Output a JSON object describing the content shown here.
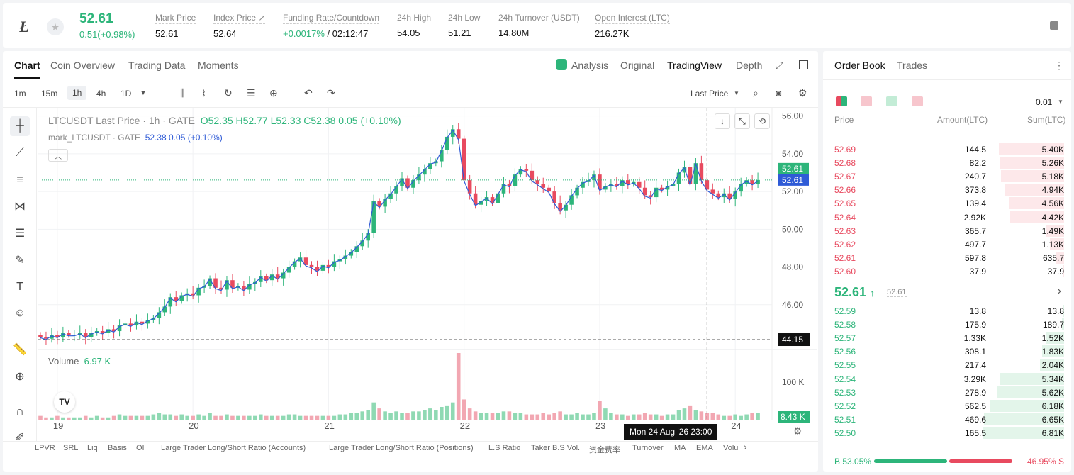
{
  "header": {
    "last_price": "52.61",
    "change": "0.51(+0.98%)",
    "stats": [
      {
        "label": "Mark Price",
        "value": "52.61"
      },
      {
        "label": "Index Price ↗",
        "value": "52.64"
      },
      {
        "label": "Funding Rate/Countdown",
        "value": "+0.0017%",
        "value2": "/ 02:12:47"
      },
      {
        "label": "24h High",
        "value": "54.05"
      },
      {
        "label": "24h Low",
        "value": "51.21"
      },
      {
        "label": "24h Turnover (USDT)",
        "value": "14.80M"
      },
      {
        "label": "Open Interest (LTC)",
        "value": "216.27K"
      }
    ]
  },
  "chart_tabs": [
    "Chart",
    "Coin Overview",
    "Trading Data",
    "Moments"
  ],
  "view_tabs": [
    "Analysis",
    "Original",
    "TradingView",
    "Depth"
  ],
  "timeframes": [
    "1m",
    "15m",
    "1h",
    "4h",
    "1D"
  ],
  "price_type": "Last Price",
  "legend": {
    "symbol": "LTCUSDT Last Price · 1h · GATE",
    "ohlc": "O52.35 H52.77 L52.33 C52.38 0.05 (+0.10%)",
    "mark": "mark_LTCUSDT · GATE",
    "mark_val": "52.38 0.05 (+0.10%)"
  },
  "volume": {
    "label": "Volume",
    "value": "6.97 K",
    "axis": "100 K",
    "tag": "8.43 K"
  },
  "crosshair": {
    "time": "Mon 24 Aug '26   23:00",
    "price": "44.15"
  },
  "colors": {
    "up": "#2db57a",
    "down": "#e84a5f",
    "mark": "#2f5bd6"
  },
  "chart_data": {
    "type": "candlestick",
    "y_ticks": [
      "56.00",
      "54.00",
      "52.00",
      "50.00",
      "48.00",
      "46.00"
    ],
    "ylim": [
      44.0,
      56.4
    ],
    "x_ticks": [
      "19",
      "20",
      "21",
      "22",
      "23",
      "24"
    ],
    "last_price_tag": "52.61",
    "mark_price_tag": "52.61",
    "closes": [
      44.3,
      44.2,
      44.4,
      44.3,
      44.5,
      44.4,
      44.4,
      44.5,
      44.3,
      44.5,
      44.6,
      44.5,
      44.7,
      44.6,
      44.9,
      45.0,
      44.9,
      45.1,
      45.0,
      45.2,
      45.3,
      45.6,
      45.9,
      46.4,
      46.2,
      46.5,
      46.6,
      46.5,
      46.9,
      47.0,
      47.4,
      46.9,
      46.8,
      47.3,
      46.9,
      47.0,
      46.8,
      47.1,
      47.2,
      47.5,
      47.3,
      47.6,
      47.4,
      47.7,
      48.0,
      48.3,
      48.5,
      48.1,
      48.0,
      47.8,
      48.1,
      48.0,
      48.3,
      48.4,
      48.6,
      48.8,
      49.1,
      49.4,
      49.8,
      51.5,
      51.2,
      51.6,
      51.9,
      52.3,
      52.7,
      52.2,
      52.6,
      52.9,
      53.2,
      53.5,
      53.6,
      54.2,
      54.9,
      55.3,
      54.8,
      52.6,
      51.9,
      51.3,
      51.5,
      51.7,
      51.4,
      51.9,
      52.4,
      52.3,
      52.9,
      53.2,
      53.1,
      52.6,
      52.4,
      52.2,
      52.0,
      51.4,
      51.0,
      51.3,
      51.8,
      52.2,
      52.5,
      52.6,
      52.9,
      52.1,
      52.3,
      52.4,
      52.3,
      52.6,
      52.4,
      52.5,
      52.2,
      51.8,
      51.7,
      52.2,
      52.1,
      52.3,
      52.4,
      53.0,
      53.3,
      52.4,
      53.5,
      52.6,
      52.1,
      51.9,
      51.7,
      51.9,
      51.6,
      52.0,
      52.4,
      52.6,
      52.4,
      52.61
    ],
    "volumes": [
      3,
      2,
      2,
      3,
      2,
      2,
      2,
      2,
      3,
      2,
      3,
      2,
      2,
      3,
      4,
      3,
      3,
      3,
      3,
      3,
      4,
      5,
      4,
      4,
      3,
      4,
      3,
      3,
      4,
      3,
      5,
      3,
      3,
      4,
      3,
      3,
      3,
      3,
      3,
      4,
      3,
      3,
      3,
      3,
      4,
      4,
      3,
      3,
      3,
      3,
      3,
      3,
      3,
      4,
      4,
      5,
      5,
      6,
      7,
      12,
      8,
      6,
      5,
      6,
      5,
      5,
      6,
      6,
      7,
      8,
      7,
      9,
      10,
      12,
      45,
      14,
      8,
      6,
      5,
      5,
      5,
      5,
      6,
      6,
      5,
      5,
      4,
      4,
      4,
      5,
      4,
      5,
      6,
      4,
      4,
      5,
      4,
      4,
      5,
      13,
      8,
      5,
      4,
      4,
      3,
      4,
      4,
      5,
      4,
      4,
      3,
      4,
      4,
      7,
      8,
      10,
      7,
      6,
      5,
      5,
      4,
      3,
      3,
      4,
      3,
      4,
      5,
      5
    ]
  },
  "toolbar_icons": [
    "crosshair-tool",
    "trendline-tool",
    "parallel-tool",
    "pattern-tool",
    "fib-tool",
    "brush-tool",
    "text-tool",
    "emoji-tool",
    "ruler-tool",
    "zoom-tool",
    "magnet-tool",
    "pencil-tool"
  ],
  "indicators": [
    "LPVR",
    "SRL",
    "Liq",
    "Basis",
    "OI",
    "Large Trader Long/Short Ratio (Accounts)",
    "Large Trader Long/Short Ratio (Positions)",
    "L.S Ratio",
    "Taker B.S Vol.",
    "资金费率",
    "Turnover",
    "MA",
    "EMA",
    "Volu"
  ],
  "orderbook": {
    "tabs": [
      "Order Book",
      "Trades"
    ],
    "precision": "0.01",
    "columns": [
      "Price",
      "Amount(LTC)",
      "Sum(LTC)"
    ],
    "asks": [
      {
        "price": "52.69",
        "amount": "144.5",
        "sum": "5.40K",
        "depth": 0.8
      },
      {
        "price": "52.68",
        "amount": "82.2",
        "sum": "5.26K",
        "depth": 0.78
      },
      {
        "price": "52.67",
        "amount": "240.7",
        "sum": "5.18K",
        "depth": 0.77
      },
      {
        "price": "52.66",
        "amount": "373.8",
        "sum": "4.94K",
        "depth": 0.73
      },
      {
        "price": "52.65",
        "amount": "139.4",
        "sum": "4.56K",
        "depth": 0.68
      },
      {
        "price": "52.64",
        "amount": "2.92K",
        "sum": "4.42K",
        "depth": 0.66
      },
      {
        "price": "52.63",
        "amount": "365.7",
        "sum": "1.49K",
        "depth": 0.22
      },
      {
        "price": "52.62",
        "amount": "497.7",
        "sum": "1.13K",
        "depth": 0.17
      },
      {
        "price": "52.61",
        "amount": "597.8",
        "sum": "635.7",
        "depth": 0.1
      },
      {
        "price": "52.60",
        "amount": "37.9",
        "sum": "37.9",
        "depth": 0.01
      }
    ],
    "mid_price": "52.61",
    "mid_mark": "52.61",
    "bids": [
      {
        "price": "52.59",
        "amount": "13.8",
        "sum": "13.8",
        "depth": 0.01
      },
      {
        "price": "52.58",
        "amount": "175.9",
        "sum": "189.7",
        "depth": 0.03
      },
      {
        "price": "52.57",
        "amount": "1.33K",
        "sum": "1.52K",
        "depth": 0.22
      },
      {
        "price": "52.56",
        "amount": "308.1",
        "sum": "1.83K",
        "depth": 0.27
      },
      {
        "price": "52.55",
        "amount": "217.4",
        "sum": "2.04K",
        "depth": 0.3
      },
      {
        "price": "52.54",
        "amount": "3.29K",
        "sum": "5.34K",
        "depth": 0.79
      },
      {
        "price": "52.53",
        "amount": "278.9",
        "sum": "5.62K",
        "depth": 0.83
      },
      {
        "price": "52.52",
        "amount": "562.5",
        "sum": "6.18K",
        "depth": 0.91
      },
      {
        "price": "52.51",
        "amount": "469.6",
        "sum": "6.65K",
        "depth": 0.98
      },
      {
        "price": "52.50",
        "amount": "165.5",
        "sum": "6.81K",
        "depth": 1.0
      }
    ],
    "buy_ratio_label": "B 53.05%",
    "sell_ratio_label": "46.95% S",
    "buy_ratio": 0.5305
  }
}
